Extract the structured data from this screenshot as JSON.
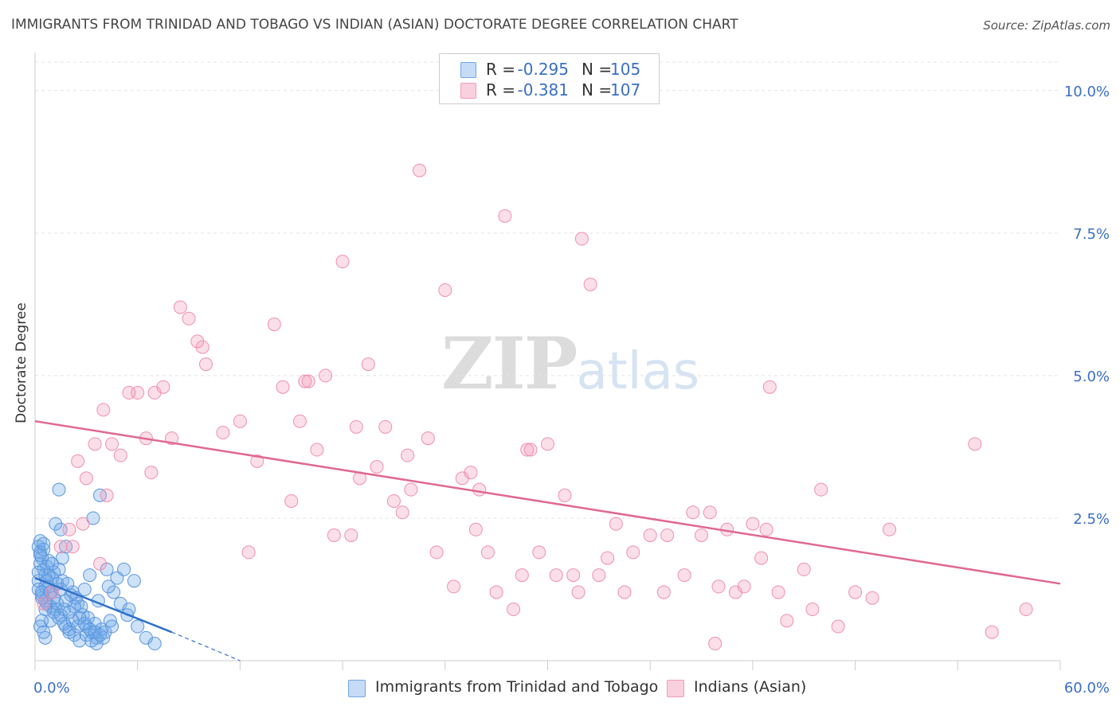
{
  "title": "IMMIGRANTS FROM TRINIDAD AND TOBAGO VS INDIAN (ASIAN) DOCTORATE DEGREE CORRELATION CHART",
  "source": "Source: ZipAtlas.com",
  "watermark": {
    "zip": "ZIP",
    "atlas": "atlas"
  },
  "legend": {
    "rows": [
      {
        "r_label": "R =",
        "r_value": "-0.295",
        "n_label": "N =",
        "n_value": "105",
        "color": "#6fa8e8"
      },
      {
        "r_label": "R =",
        "r_value": "-0.381",
        "n_label": "N =",
        "n_value": "107",
        "color": "#f29bb8"
      }
    ]
  },
  "bottom_legend": [
    {
      "label": "Immigrants from Trinidad and Tobago",
      "color": "#6fa8e8"
    },
    {
      "label": "Indians (Asian)",
      "color": "#f29bb8"
    }
  ],
  "chart_data": {
    "type": "scatter",
    "title": "IMMIGRANTS FROM TRINIDAD AND TOBAGO VS INDIAN (ASIAN) DOCTORATE DEGREE CORRELATION CHART",
    "xlabel": "",
    "ylabel": "Doctorate Degree",
    "xlim": [
      0,
      60
    ],
    "ylim": [
      0,
      10.5
    ],
    "x_tick_labels": [
      {
        "value": 0,
        "label": "0.0%"
      },
      {
        "value": 60,
        "label": "60.0%"
      }
    ],
    "y_tick_labels": [
      {
        "value": 2.5,
        "label": "2.5%"
      },
      {
        "value": 5.0,
        "label": "5.0%"
      },
      {
        "value": 7.5,
        "label": "7.5%"
      },
      {
        "value": 10.0,
        "label": "10.0%"
      }
    ],
    "grid": true,
    "series": [
      {
        "name": "Immigrants from Trinidad and Tobago",
        "color": "#6fa8e8",
        "trend": {
          "x0": 0,
          "y0": 1.45,
          "x1": 8,
          "y1": 0.5,
          "dashed_to_x": 12,
          "dashed_to_y": 0.0
        },
        "points": [
          [
            0.2,
            2.0
          ],
          [
            0.3,
            1.9
          ],
          [
            0.4,
            1.8
          ],
          [
            0.3,
            1.7
          ],
          [
            0.5,
            1.6
          ],
          [
            0.6,
            1.5
          ],
          [
            0.2,
            1.4
          ],
          [
            0.8,
            1.3
          ],
          [
            1.0,
            1.2
          ],
          [
            0.4,
            1.1
          ],
          [
            0.7,
            1.0
          ],
          [
            1.2,
            0.9
          ],
          [
            1.5,
            0.8
          ],
          [
            0.9,
            0.7
          ],
          [
            1.8,
            0.6
          ],
          [
            2.0,
            0.5
          ],
          [
            0.6,
            0.4
          ],
          [
            1.4,
            1.6
          ],
          [
            1.6,
            1.4
          ],
          [
            2.2,
            1.2
          ],
          [
            2.5,
            1.0
          ],
          [
            2.8,
            0.8
          ],
          [
            3.0,
            0.6
          ],
          [
            3.3,
            0.5
          ],
          [
            3.6,
            0.4
          ],
          [
            0.3,
            2.1
          ],
          [
            0.5,
            1.95
          ],
          [
            0.8,
            1.75
          ],
          [
            1.1,
            1.55
          ],
          [
            1.3,
            1.35
          ],
          [
            0.2,
            1.25
          ],
          [
            0.4,
            1.15
          ],
          [
            0.6,
            1.05
          ],
          [
            0.9,
            0.95
          ],
          [
            1.1,
            0.85
          ],
          [
            1.4,
            0.75
          ],
          [
            1.7,
            0.65
          ],
          [
            2.0,
            0.55
          ],
          [
            2.3,
            0.45
          ],
          [
            2.6,
            0.35
          ],
          [
            0.7,
            1.65
          ],
          [
            1.0,
            1.45
          ],
          [
            1.2,
            2.4
          ],
          [
            1.5,
            2.3
          ],
          [
            1.8,
            2.0
          ],
          [
            3.2,
            1.5
          ],
          [
            3.4,
            2.5
          ],
          [
            3.8,
            2.9
          ],
          [
            4.2,
            1.6
          ],
          [
            4.6,
            1.2
          ],
          [
            5.0,
            1.0
          ],
          [
            5.4,
            0.8
          ],
          [
            6.0,
            0.6
          ],
          [
            6.5,
            0.4
          ],
          [
            7.0,
            0.3
          ],
          [
            1.4,
            3.0
          ],
          [
            0.6,
            0.9
          ],
          [
            0.4,
            0.7
          ],
          [
            2.4,
            1.1
          ],
          [
            2.7,
            0.95
          ],
          [
            3.1,
            0.75
          ],
          [
            3.5,
            0.65
          ],
          [
            3.9,
            0.55
          ],
          [
            4.3,
            1.3
          ],
          [
            4.8,
            1.45
          ],
          [
            0.3,
            0.6
          ],
          [
            0.5,
            0.5
          ],
          [
            1.9,
            1.35
          ],
          [
            2.1,
            1.15
          ],
          [
            2.9,
            1.25
          ],
          [
            3.7,
            1.05
          ],
          [
            1.6,
            1.8
          ],
          [
            1.0,
            1.7
          ],
          [
            0.8,
            1.5
          ],
          [
            0.6,
            1.3
          ],
          [
            0.4,
            1.2
          ],
          [
            1.3,
            1.0
          ],
          [
            1.7,
            0.9
          ],
          [
            2.2,
            0.7
          ],
          [
            2.5,
            0.6
          ],
          [
            3.0,
            0.45
          ],
          [
            3.3,
            0.35
          ],
          [
            3.6,
            0.3
          ],
          [
            4.0,
            0.4
          ],
          [
            4.4,
            0.7
          ],
          [
            5.2,
            1.6
          ],
          [
            5.8,
            1.4
          ],
          [
            0.2,
            1.55
          ],
          [
            0.3,
            1.85
          ],
          [
            0.5,
            2.05
          ],
          [
            0.7,
            1.4
          ],
          [
            0.9,
            1.2
          ],
          [
            1.1,
            1.1
          ],
          [
            1.5,
            1.25
          ],
          [
            1.8,
            1.05
          ],
          [
            2.0,
            0.85
          ],
          [
            2.3,
            0.95
          ],
          [
            2.6,
            0.75
          ],
          [
            2.9,
            0.65
          ],
          [
            3.2,
            0.55
          ],
          [
            3.5,
            0.5
          ],
          [
            3.8,
            0.45
          ],
          [
            4.1,
            0.5
          ],
          [
            4.5,
            0.6
          ],
          [
            5.5,
            0.9
          ]
        ]
      },
      {
        "name": "Indians (Asian)",
        "color": "#f29bb8",
        "trend": {
          "x0": 0,
          "y0": 4.2,
          "x1": 60,
          "y1": 1.35
        },
        "points": [
          [
            0.5,
            1.0
          ],
          [
            1.0,
            1.2
          ],
          [
            1.5,
            2.0
          ],
          [
            2.0,
            2.3
          ],
          [
            2.5,
            3.5
          ],
          [
            3.0,
            3.2
          ],
          [
            3.5,
            3.8
          ],
          [
            4.0,
            4.4
          ],
          [
            4.5,
            3.8
          ],
          [
            5.0,
            3.6
          ],
          [
            5.5,
            4.7
          ],
          [
            6.0,
            4.7
          ],
          [
            6.5,
            3.9
          ],
          [
            7.0,
            4.7
          ],
          [
            7.5,
            4.8
          ],
          [
            8.0,
            3.9
          ],
          [
            8.5,
            6.2
          ],
          [
            9.0,
            6.0
          ],
          [
            9.5,
            5.6
          ],
          [
            10.0,
            5.2
          ],
          [
            11.0,
            4.0
          ],
          [
            12.0,
            4.2
          ],
          [
            13.0,
            3.5
          ],
          [
            14.0,
            5.9
          ],
          [
            14.5,
            4.8
          ],
          [
            15.0,
            2.8
          ],
          [
            15.5,
            4.2
          ],
          [
            16.0,
            4.9
          ],
          [
            16.5,
            3.7
          ],
          [
            17.0,
            5.0
          ],
          [
            17.5,
            2.2
          ],
          [
            18.0,
            7.0
          ],
          [
            18.5,
            2.2
          ],
          [
            19.0,
            3.2
          ],
          [
            19.5,
            5.2
          ],
          [
            20.0,
            3.4
          ],
          [
            20.5,
            4.1
          ],
          [
            21.0,
            2.8
          ],
          [
            21.5,
            2.6
          ],
          [
            22.0,
            3.0
          ],
          [
            22.5,
            8.6
          ],
          [
            23.0,
            3.9
          ],
          [
            23.5,
            1.9
          ],
          [
            24.0,
            6.5
          ],
          [
            24.5,
            1.3
          ],
          [
            25.0,
            3.2
          ],
          [
            25.5,
            3.3
          ],
          [
            26.0,
            3.0
          ],
          [
            26.5,
            1.9
          ],
          [
            27.0,
            1.2
          ],
          [
            27.5,
            7.8
          ],
          [
            28.0,
            0.9
          ],
          [
            28.5,
            1.5
          ],
          [
            29.0,
            3.7
          ],
          [
            29.5,
            1.9
          ],
          [
            30.0,
            3.8
          ],
          [
            30.5,
            1.5
          ],
          [
            31.0,
            2.9
          ],
          [
            31.5,
            1.5
          ],
          [
            32.0,
            7.4
          ],
          [
            32.5,
            6.6
          ],
          [
            33.0,
            1.5
          ],
          [
            33.5,
            1.8
          ],
          [
            34.0,
            2.4
          ],
          [
            34.5,
            1.2
          ],
          [
            35.0,
            1.9
          ],
          [
            36.0,
            2.2
          ],
          [
            37.0,
            2.2
          ],
          [
            38.0,
            1.5
          ],
          [
            38.5,
            2.6
          ],
          [
            39.0,
            2.2
          ],
          [
            39.5,
            2.6
          ],
          [
            40.0,
            1.3
          ],
          [
            40.5,
            2.3
          ],
          [
            41.0,
            1.2
          ],
          [
            41.5,
            1.3
          ],
          [
            42.0,
            2.4
          ],
          [
            42.5,
            1.8
          ],
          [
            43.0,
            4.8
          ],
          [
            43.5,
            1.2
          ],
          [
            44.0,
            0.7
          ],
          [
            45.0,
            1.6
          ],
          [
            45.5,
            0.9
          ],
          [
            46.0,
            3.0
          ],
          [
            47.0,
            0.6
          ],
          [
            48.0,
            1.2
          ],
          [
            49.0,
            1.1
          ],
          [
            50.0,
            2.3
          ],
          [
            55.0,
            3.8
          ],
          [
            56.0,
            0.5
          ],
          [
            58.0,
            0.9
          ],
          [
            3.8,
            1.7
          ],
          [
            4.2,
            2.9
          ],
          [
            6.8,
            3.3
          ],
          [
            9.8,
            5.5
          ],
          [
            12.5,
            1.9
          ],
          [
            15.8,
            4.9
          ],
          [
            18.8,
            4.1
          ],
          [
            21.8,
            3.6
          ],
          [
            25.8,
            2.3
          ],
          [
            28.8,
            3.7
          ],
          [
            31.8,
            1.2
          ],
          [
            36.8,
            1.2
          ],
          [
            39.8,
            0.3
          ],
          [
            42.8,
            2.3
          ],
          [
            2.2,
            2.0
          ],
          [
            2.8,
            2.4
          ]
        ]
      }
    ]
  }
}
